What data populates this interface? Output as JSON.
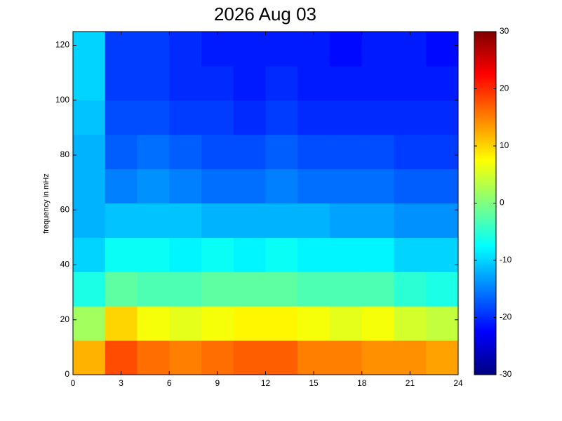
{
  "chart_data": {
    "type": "heatmap",
    "title": "2026 Aug 03",
    "ylabel": "frequency in mHz",
    "colormap": "jet",
    "xbins": [
      0,
      2,
      4,
      6,
      8,
      10,
      12,
      14,
      16,
      18,
      20,
      22,
      24
    ],
    "ybins": [
      0,
      12.5,
      25,
      37.5,
      50,
      62.5,
      75,
      87.5,
      100,
      112.5,
      125
    ],
    "values": [
      [
        12,
        18,
        16,
        15,
        16,
        17,
        17,
        15,
        15,
        14,
        14,
        13
      ],
      [
        2,
        10,
        7,
        6,
        7,
        8,
        8,
        7,
        6,
        7,
        5,
        4
      ],
      [
        -6,
        -2,
        -3,
        -3,
        -2,
        -2,
        -2,
        -3,
        -3,
        -3,
        -5,
        -6
      ],
      [
        -10,
        -7,
        -7,
        -8,
        -7,
        -8,
        -7,
        -8,
        -8,
        -8,
        -10,
        -10
      ],
      [
        -12,
        -11,
        -11,
        -11,
        -12,
        -12,
        -12,
        -12,
        -13,
        -13,
        -14,
        -14
      ],
      [
        -12,
        -15,
        -14,
        -15,
        -16,
        -16,
        -15,
        -16,
        -16,
        -16,
        -17,
        -17
      ],
      [
        -12,
        -17,
        -16,
        -17,
        -18,
        -18,
        -17,
        -18,
        -18,
        -18,
        -19,
        -19
      ],
      [
        -11,
        -18,
        -18,
        -19,
        -19,
        -20,
        -19,
        -20,
        -20,
        -20,
        -20,
        -20
      ],
      [
        -10,
        -19,
        -19,
        -20,
        -20,
        -21,
        -20,
        -21,
        -21,
        -21,
        -21,
        -21
      ],
      [
        -10,
        -19,
        -19,
        -20,
        -21,
        -21,
        -21,
        -21,
        -22,
        -21,
        -21,
        -22
      ]
    ],
    "xlim": [
      0,
      24
    ],
    "xticks": [
      0,
      3,
      6,
      9,
      12,
      15,
      18,
      21,
      24
    ],
    "ylim": [
      0,
      125
    ],
    "yticks": [
      0,
      20,
      40,
      60,
      80,
      100,
      120
    ],
    "clim": [
      -30,
      30
    ],
    "cticks": [
      -30,
      -20,
      -10,
      0,
      10,
      20,
      30
    ]
  }
}
